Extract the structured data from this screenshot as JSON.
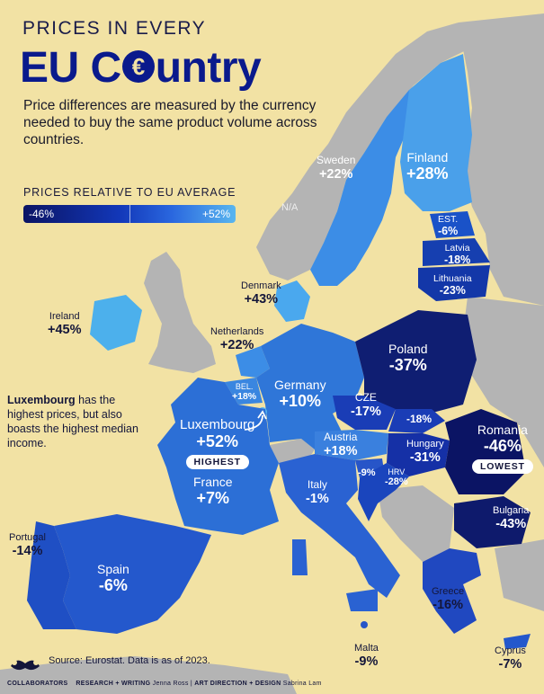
{
  "header": {
    "title_line1": "PRICES IN EVERY",
    "title_line2_pre": "EU C",
    "title_line2_icon": "euro-sign-icon",
    "title_line2_post": "untry",
    "subtitle": "Price differences are measured by the currency needed to buy the same product volume across countries."
  },
  "legend": {
    "title": "PRICES RELATIVE TO EU AVERAGE",
    "min": "-46%",
    "max": "+52%"
  },
  "colors": {
    "background": "#f2e2a4",
    "non_eu_land": "#b4b4b4",
    "darkest": "#0b1464",
    "lightest": "#59b6ef"
  },
  "countries": [
    {
      "key": "sweden",
      "name": "Sweden",
      "value": "+22%"
    },
    {
      "key": "finland",
      "name": "Finland",
      "value": "+28%"
    },
    {
      "key": "na",
      "name": "N/A",
      "value": ""
    },
    {
      "key": "estonia",
      "name": "EST.",
      "value": "-6%"
    },
    {
      "key": "latvia",
      "name": "Latvia",
      "value": "-18%"
    },
    {
      "key": "lithuania",
      "name": "Lithuania",
      "value": "-23%"
    },
    {
      "key": "denmark",
      "name": "Denmark",
      "value": "+43%"
    },
    {
      "key": "ireland",
      "name": "Ireland",
      "value": "+45%"
    },
    {
      "key": "netherlands",
      "name": "Netherlands",
      "value": "+22%"
    },
    {
      "key": "poland",
      "name": "Poland",
      "value": "-37%"
    },
    {
      "key": "belgium",
      "name": "BEL.",
      "value": "+18%"
    },
    {
      "key": "germany",
      "name": "Germany",
      "value": "+10%"
    },
    {
      "key": "czechia",
      "name": "CZE",
      "value": "-17%"
    },
    {
      "key": "slovakia",
      "name": "",
      "value": "-18%"
    },
    {
      "key": "luxembourg",
      "name": "Luxembourg",
      "value": "+52%",
      "tag": "HIGHEST"
    },
    {
      "key": "austria",
      "name": "Austria",
      "value": "+18%"
    },
    {
      "key": "hungary",
      "name": "Hungary",
      "value": "-31%"
    },
    {
      "key": "romania",
      "name": "Romania",
      "value": "-46%",
      "tag": "LOWEST"
    },
    {
      "key": "france",
      "name": "France",
      "value": "+7%"
    },
    {
      "key": "slovenia",
      "name": "",
      "value": "-9%"
    },
    {
      "key": "croatia",
      "name": "HRV",
      "value": "-28%"
    },
    {
      "key": "italy",
      "name": "Italy",
      "value": "-1%"
    },
    {
      "key": "bulgaria",
      "name": "Bulgaria",
      "value": "-43%"
    },
    {
      "key": "portugal",
      "name": "Portugal",
      "value": "-14%"
    },
    {
      "key": "spain",
      "name": "Spain",
      "value": "-6%"
    },
    {
      "key": "greece",
      "name": "Greece",
      "value": "-16%"
    },
    {
      "key": "malta",
      "name": "Malta",
      "value": "-9%"
    },
    {
      "key": "cyprus",
      "name": "Cyprus",
      "value": "-7%"
    }
  ],
  "notes": {
    "lux_bold": "Luxembourg",
    "lux_rest": " has the highest prices, but also boasts the highest median income."
  },
  "footer": {
    "source": "Source: Eurostat. Data is as of 2023.",
    "brand": "COLLABORATORS",
    "research_label": "RESEARCH + WRITING",
    "research_name": "Jenna Ross",
    "design_label": "ART DIRECTION + DESIGN",
    "design_name": "Sabrina Lam",
    "separator": "|"
  }
}
